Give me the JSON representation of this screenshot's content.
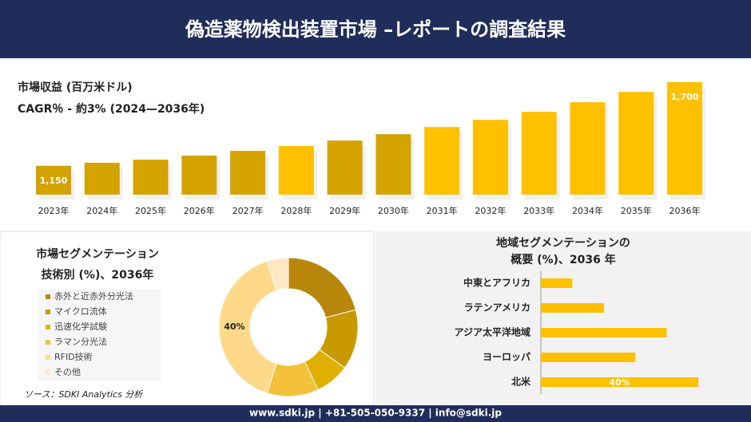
{
  "header": {
    "title": "偽造薬物検出装置市場 –レポートの調査結果"
  },
  "chart_data": [
    {
      "type": "bar",
      "title": "市場収益 (百万米ドル)",
      "subtitle": "CAGR％ - 約3% (2024—2036年)",
      "categories": [
        "2023年",
        "2024年",
        "2025年",
        "2026年",
        "2027年",
        "2028年",
        "2029年",
        "2030年",
        "2031年",
        "2032年",
        "2033年",
        "2034年",
        "2035年",
        "2036年"
      ],
      "values": [
        1150,
        1170,
        1190,
        1217,
        1248,
        1280,
        1316,
        1358,
        1405,
        1452,
        1505,
        1568,
        1636,
        1700
      ],
      "value_labels": [
        "1,150",
        null,
        null,
        null,
        null,
        null,
        null,
        null,
        null,
        null,
        null,
        null,
        null,
        "1,700"
      ],
      "colors": [
        "#d4a300",
        "#d4a300",
        "#d4a300",
        "#d4a300",
        "#d4a300",
        "#ffc000",
        "#d4a300",
        "#d4a300",
        "#ffc000",
        "#ffc000",
        "#ffc000",
        "#ffc000",
        "#ffc000",
        "#ffc000"
      ],
      "ylim": [
        960,
        1700
      ]
    },
    {
      "type": "pie",
      "donut": true,
      "title": "市場セグメンテーション",
      "subtitle": "技術別 (%)、2036年",
      "categories": [
        "赤外と近赤外分光法",
        "マイクロ流体",
        "迅速化学試験",
        "ラマン分光法",
        "RFID技術",
        "その他"
      ],
      "values": [
        21,
        14,
        8,
        12,
        40,
        5
      ],
      "value_labels": [
        null,
        null,
        null,
        null,
        "40%",
        null
      ],
      "colors": [
        "#b8860b",
        "#c99a00",
        "#e0b000",
        "#f3c23a",
        "#ffd98a",
        "#ffe7c4"
      ]
    },
    {
      "type": "bar",
      "horizontal": true,
      "title": "地域セグメンテーションの",
      "subtitle": "概要 (%)、2036 年",
      "categories": [
        "中東とアフリカ",
        "ラテンアメリカ",
        "アジア太平洋地域",
        "ヨーロッパ",
        "北米"
      ],
      "values": [
        8,
        16,
        32,
        24,
        40
      ],
      "value_labels": [
        null,
        null,
        null,
        null,
        "40%"
      ],
      "color": "#ffc000",
      "xlim": [
        0,
        40
      ]
    }
  ],
  "source": "ソース：SDKI Analytics 分析",
  "footer": "www.sdki.jp | +81-505-050-9337 | info@sdki.jp"
}
